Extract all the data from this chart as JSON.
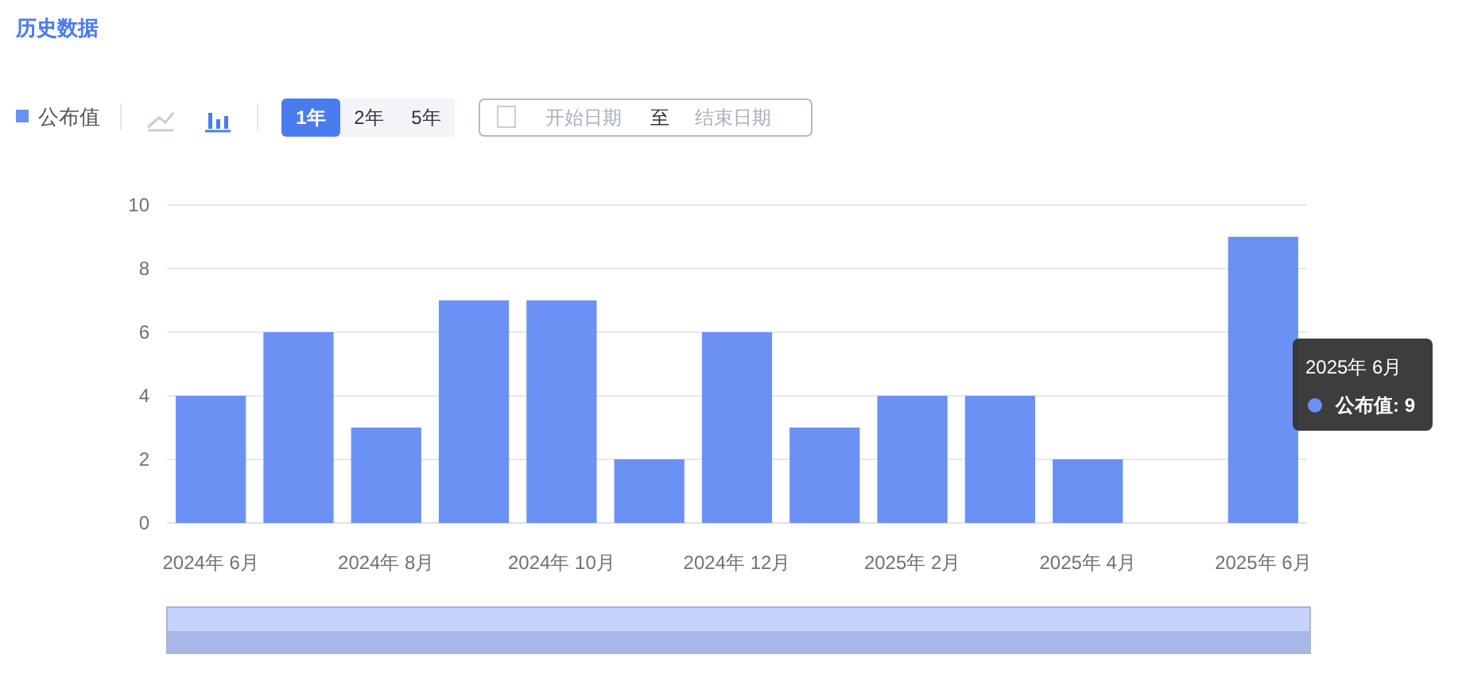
{
  "chart_data": {
    "type": "bar",
    "title": "历史数据",
    "categories": [
      "2024年 6月",
      null,
      "2024年 8月",
      null,
      "2024年 10月",
      null,
      "2024年 12月",
      null,
      "2025年 2月",
      null,
      "2025年 4月",
      null,
      "2025年 6月"
    ],
    "series": [
      {
        "name": "公布值",
        "color": "#6b91f5",
        "values": [
          4,
          6,
          3,
          7,
          7,
          2,
          6,
          3,
          4,
          4,
          2,
          null,
          9
        ]
      }
    ],
    "ylim": [
      0,
      10
    ],
    "yticks": [
      0,
      2,
      4,
      6,
      8,
      10
    ],
    "grid": "y",
    "legend": "top left",
    "annotations": [
      "1年",
      "2年",
      "5年",
      "开始日期",
      "至",
      "结束日期",
      "2025年 6月",
      "公布值: 9"
    ]
  }
}
